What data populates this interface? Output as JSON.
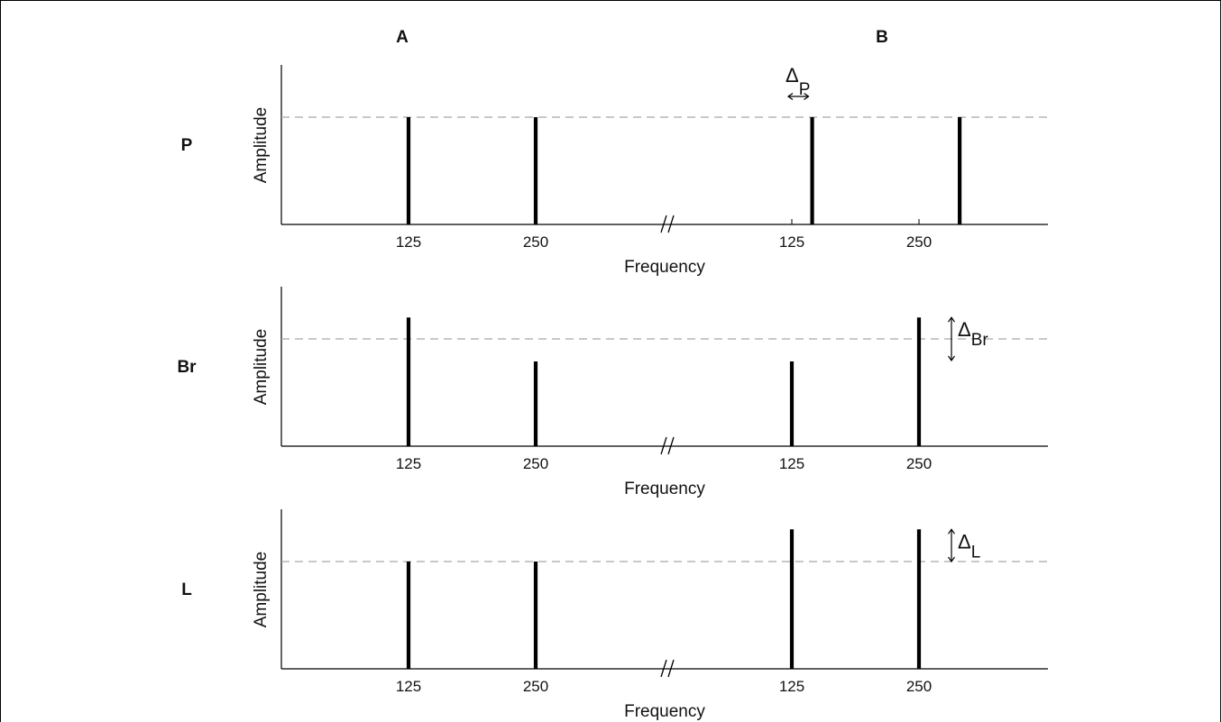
{
  "columns": [
    "A",
    "B"
  ],
  "axis": {
    "ylabel": "Amplitude",
    "xlabel": "Frequency",
    "tick_labels": [
      "125",
      "250",
      "125",
      "250"
    ],
    "break_mark": "//"
  },
  "delta_symbol": "Δ",
  "panels": [
    {
      "label": "P",
      "reference_amplitude": 1.0,
      "spikes": [
        {
          "group": "A",
          "frequency": 125,
          "amplitude": 1.0
        },
        {
          "group": "A",
          "frequency": 250,
          "amplitude": 1.0
        },
        {
          "group": "B",
          "frequency": 145,
          "amplitude": 1.0
        },
        {
          "group": "B",
          "frequency": 290,
          "amplitude": 1.0
        }
      ],
      "delta": {
        "subscript": "P",
        "kind": "horizontal"
      }
    },
    {
      "label": "Br",
      "reference_amplitude": 1.0,
      "spikes": [
        {
          "group": "A",
          "frequency": 125,
          "amplitude": 1.2
        },
        {
          "group": "A",
          "frequency": 250,
          "amplitude": 0.79
        },
        {
          "group": "B",
          "frequency": 125,
          "amplitude": 0.79
        },
        {
          "group": "B",
          "frequency": 250,
          "amplitude": 1.2
        }
      ],
      "delta": {
        "subscript": "Br",
        "kind": "vertical"
      }
    },
    {
      "label": "L",
      "reference_amplitude": 1.0,
      "spikes": [
        {
          "group": "A",
          "frequency": 125,
          "amplitude": 1.0
        },
        {
          "group": "A",
          "frequency": 250,
          "amplitude": 1.0
        },
        {
          "group": "B",
          "frequency": 125,
          "amplitude": 1.3
        },
        {
          "group": "B",
          "frequency": 250,
          "amplitude": 1.3
        }
      ],
      "delta": {
        "subscript": "L",
        "kind": "vertical"
      }
    }
  ]
}
